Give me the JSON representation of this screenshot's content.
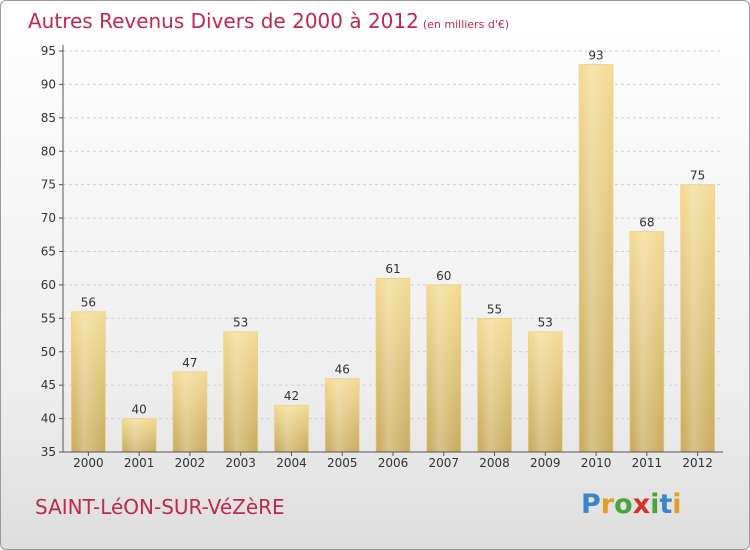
{
  "header": {
    "title": "Autres Revenus Divers de 2000 à 2012",
    "subtitle": "(en milliers d'€)"
  },
  "footer": {
    "commune": "SAINT-LéON-SUR-VéZèRE",
    "logo_letters": [
      "P",
      "r",
      "o",
      "x",
      "i",
      "t",
      "i"
    ],
    "logo_colors": [
      "#3a86c8",
      "#e59c24",
      "#4aa43c",
      "#d6322c",
      "#4aa43c",
      "#3a86c8",
      "#e59c24"
    ]
  },
  "colors": {
    "title": "#c0284e",
    "bar_light": "#f4dc96",
    "bar_dark": "#c9ad62",
    "axis": "#555555",
    "grid": "#cfcfcf"
  },
  "chart_data": {
    "type": "bar",
    "categories": [
      "2000",
      "2001",
      "2002",
      "2003",
      "2004",
      "2005",
      "2006",
      "2007",
      "2008",
      "2009",
      "2010",
      "2011",
      "2012"
    ],
    "values": [
      56,
      40,
      47,
      53,
      42,
      46,
      61,
      60,
      55,
      53,
      93,
      68,
      75
    ],
    "ylim": [
      35,
      95
    ],
    "yticks": [
      35,
      40,
      45,
      50,
      55,
      60,
      65,
      70,
      75,
      80,
      85,
      90,
      95
    ],
    "grid": "horizontal dashed",
    "legend": "none"
  }
}
